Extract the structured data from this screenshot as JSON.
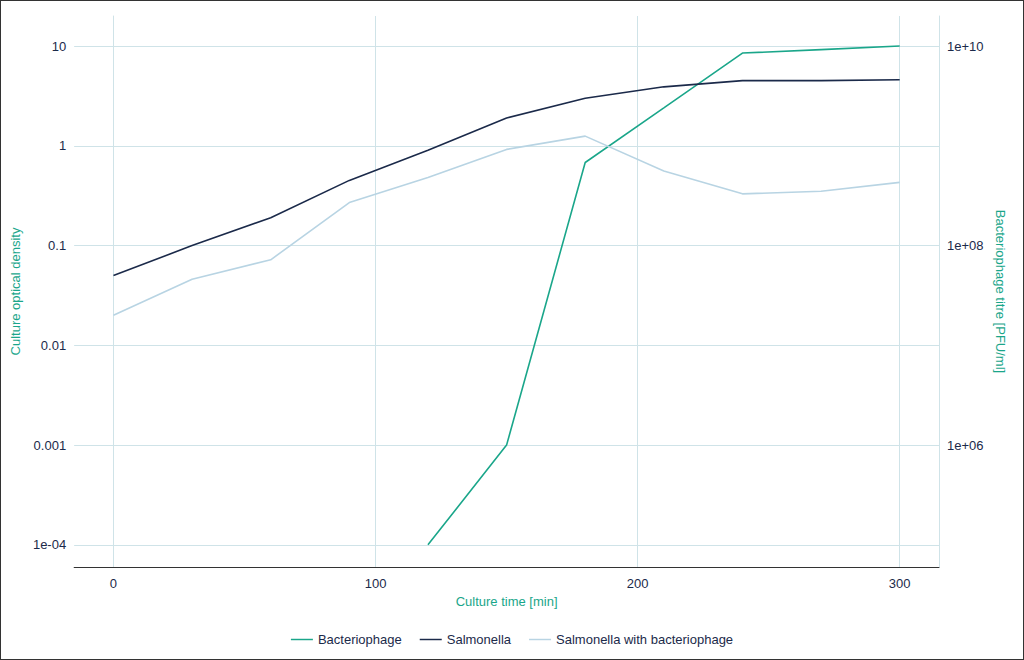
{
  "chart_data": {
    "type": "line",
    "x_label": "Culture time [min]",
    "y_label": "Culture optical density",
    "y2_label": "Bacteriophage titre [PFU/ml]",
    "x": [
      0,
      30,
      60,
      90,
      120,
      150,
      180,
      210,
      240,
      270,
      300
    ],
    "series": [
      {
        "name": "Bacteriophage",
        "color": "#1aa68a",
        "axis": "y2",
        "values": [
          null,
          null,
          null,
          null,
          100000,
          1000000,
          680000000,
          2400000000,
          8500000000,
          9200000000,
          10000000000
        ]
      },
      {
        "name": "Salmonella",
        "color": "#1b2a4a",
        "values": [
          0.05,
          0.1,
          0.19,
          0.45,
          0.9,
          1.9,
          3.0,
          3.9,
          4.5,
          4.5,
          4.6
        ]
      },
      {
        "name": "Salmonella with bacteriophage",
        "color": "#b8d4e3",
        "values": [
          0.02,
          0.046,
          0.072,
          0.27,
          0.48,
          0.92,
          1.25,
          0.56,
          0.33,
          0.35,
          0.43
        ]
      }
    ],
    "xlim": [
      -15,
      315
    ],
    "xticks": [
      0,
      100,
      200,
      300
    ],
    "ylim": [
      6e-05,
      20
    ],
    "yticks": [
      {
        "value": 0.0001,
        "label": "1e-04"
      },
      0.001,
      0.01,
      0.1,
      1,
      10
    ],
    "y2lim": [
      60000,
      20000000000
    ],
    "y2ticks": [
      {
        "value": 1000000,
        "label": "1e+06"
      },
      {
        "value": 100000000,
        "label": "1e+08"
      },
      {
        "value": 10000000000,
        "label": "1e+10"
      }
    ],
    "log": "y",
    "grid": true,
    "legend": "bottom"
  }
}
